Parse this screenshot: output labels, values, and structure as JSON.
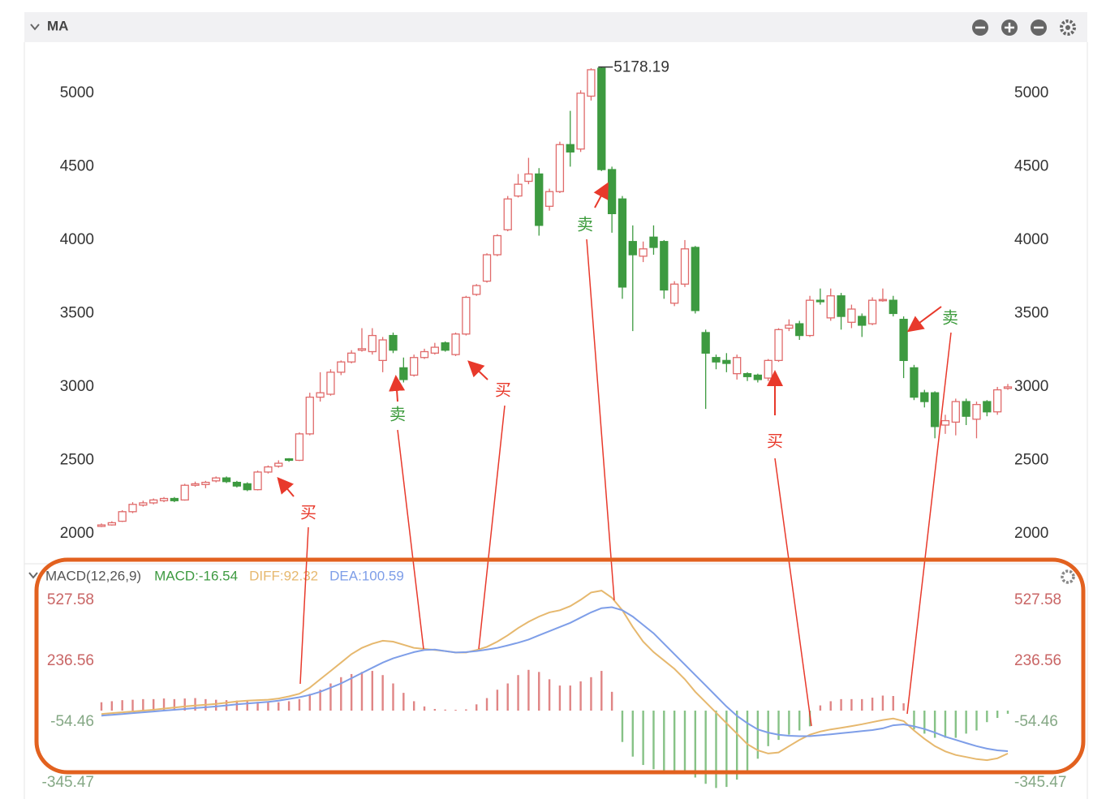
{
  "chart_data": [
    {
      "type": "candlestick",
      "title": "MA",
      "up_color": "#e06a6a",
      "down_color": "#3d9a40",
      "ylim": [
        1823,
        5331
      ],
      "yticks": [
        2000,
        2500,
        3000,
        3500,
        4000,
        4500,
        5000
      ],
      "max_index": 48,
      "open": [
        2050,
        2060,
        2085,
        2150,
        2195,
        2210,
        2225,
        2240,
        2230,
        2330,
        2335,
        2360,
        2380,
        2350,
        2340,
        2300,
        2420,
        2460,
        2510,
        2500,
        2680,
        2930,
        2950,
        3100,
        3170,
        3250,
        3240,
        3180,
        3350,
        3130,
        3080,
        3200,
        3230,
        3300,
        3220,
        3360,
        3630,
        3720,
        3900,
        4070,
        4300,
        4400,
        4450,
        4230,
        4330,
        4650,
        4620,
        4980,
        5170,
        4480,
        4280,
        3990,
        3890,
        4020,
        3990,
        3570,
        3700,
        3950,
        3370,
        3200,
        3180,
        3090,
        3090,
        3080,
        3060,
        3180,
        3400,
        3430,
        3350,
        3590,
        3470,
        3620,
        3440,
        3480,
        3430,
        3590,
        3590,
        3460,
        3130,
        2960,
        2960,
        2740,
        2760,
        2900,
        2780,
        2900,
        2830,
        2990
      ],
      "high": [
        2070,
        2085,
        2160,
        2215,
        2225,
        2240,
        2250,
        2250,
        2340,
        2355,
        2360,
        2390,
        2390,
        2360,
        2350,
        2430,
        2465,
        2500,
        2515,
        2690,
        2960,
        3100,
        3120,
        3180,
        3250,
        3400,
        3400,
        3340,
        3370,
        3200,
        3220,
        3260,
        3300,
        3310,
        3370,
        3620,
        3700,
        3910,
        4040,
        4300,
        4450,
        4560,
        4490,
        4350,
        4670,
        4880,
        5020,
        5170,
        5178.19,
        4500,
        4300,
        4100,
        3990,
        4100,
        4000,
        3720,
        4000,
        3960,
        3390,
        3220,
        3230,
        3220,
        3100,
        3090,
        3190,
        3400,
        3460,
        3450,
        3620,
        3670,
        3670,
        3640,
        3560,
        3500,
        3610,
        3670,
        3620,
        3480,
        3150,
        2980,
        2970,
        2810,
        2920,
        2920,
        2900,
        2910,
        3000,
        3020
      ],
      "low": [
        2045,
        2055,
        2080,
        2140,
        2185,
        2200,
        2215,
        2215,
        2225,
        2320,
        2310,
        2350,
        2345,
        2315,
        2290,
        2295,
        2410,
        2450,
        2490,
        2495,
        2670,
        2900,
        2940,
        3080,
        3160,
        3240,
        3220,
        3100,
        3230,
        3030,
        3070,
        3190,
        3220,
        3240,
        3210,
        3350,
        3620,
        3710,
        3890,
        4060,
        4290,
        4380,
        4030,
        4200,
        4320,
        4500,
        4600,
        4950,
        4470,
        4050,
        3600,
        3380,
        3850,
        3900,
        3600,
        3550,
        3680,
        3500,
        2850,
        3120,
        3100,
        3050,
        3040,
        3030,
        3040,
        3170,
        3380,
        3320,
        3340,
        3560,
        3450,
        3390,
        3400,
        3340,
        3420,
        3580,
        3480,
        3060,
        2910,
        2860,
        2650,
        2680,
        2670,
        2740,
        2650,
        2800,
        2810,
        2980
      ],
      "close": [
        2060,
        2075,
        2150,
        2200,
        2210,
        2230,
        2240,
        2225,
        2330,
        2340,
        2350,
        2380,
        2355,
        2325,
        2300,
        2420,
        2455,
        2480,
        2500,
        2680,
        2930,
        2960,
        3100,
        3170,
        3230,
        3260,
        3350,
        3320,
        3250,
        3050,
        3200,
        3240,
        3270,
        3250,
        3360,
        3610,
        3690,
        3900,
        4030,
        4280,
        4380,
        4450,
        4100,
        4330,
        4650,
        4600,
        5000,
        5160,
        4480,
        4180,
        3680,
        3900,
        3940,
        3950,
        3660,
        3700,
        3940,
        3520,
        3230,
        3170,
        3160,
        3200,
        3070,
        3050,
        3180,
        3390,
        3420,
        3350,
        3590,
        3580,
        3620,
        3480,
        3530,
        3420,
        3590,
        3595,
        3500,
        3180,
        2930,
        2900,
        2730,
        2770,
        2900,
        2800,
        2880,
        2830,
        2980,
        3000
      ]
    },
    {
      "type": "macd",
      "title": "MACD(12,26,9)",
      "ylim": [
        -384,
        586
      ],
      "yticks": [
        -345.47,
        -54.46,
        236.56,
        527.58
      ],
      "series": [
        {
          "name": "MACD:-16.54",
          "color": "#3d9a40",
          "up_color": "#e08585",
          "down_color": "#86c286",
          "values": [
            40,
            45,
            50,
            52,
            55,
            55,
            58,
            55,
            58,
            60,
            55,
            52,
            50,
            48,
            45,
            42,
            40,
            40,
            45,
            55,
            80,
            100,
            130,
            160,
            175,
            185,
            190,
            170,
            130,
            85,
            45,
            20,
            8,
            5,
            4,
            6,
            30,
            60,
            100,
            130,
            170,
            195,
            185,
            150,
            120,
            120,
            140,
            160,
            190,
            90,
            -150,
            -220,
            -260,
            -280,
            -300,
            -290,
            -290,
            -320,
            -350,
            -370,
            -365,
            -330,
            -290,
            -230,
            -170,
            -140,
            -115,
            -95,
            -75,
            25,
            45,
            55,
            55,
            55,
            62,
            72,
            70,
            35,
            -90,
            -110,
            -130,
            -130,
            -130,
            -110,
            -95,
            -55,
            -35,
            -15
          ]
        },
        {
          "name": "DIFF:92.32",
          "color": "#e6b86e",
          "values": [
            -16,
            -12,
            -8,
            -4,
            0,
            4,
            10,
            15,
            20,
            24,
            28,
            32,
            38,
            44,
            48,
            50,
            52,
            58,
            68,
            81,
            110,
            150,
            190,
            230,
            270,
            300,
            320,
            334,
            330,
            315,
            300,
            295,
            290,
            285,
            278,
            278,
            290,
            305,
            330,
            360,
            395,
            425,
            450,
            470,
            480,
            500,
            530,
            565,
            574,
            540,
            480,
            400,
            330,
            280,
            240,
            200,
            150,
            90,
            40,
            -10,
            -60,
            -110,
            -160,
            -190,
            -205,
            -200,
            -170,
            -140,
            -115,
            -100,
            -90,
            -82,
            -74,
            -65,
            -55,
            -45,
            -38,
            -50,
            -95,
            -135,
            -170,
            -195,
            -212,
            -222,
            -232,
            -237,
            -228,
            -205
          ]
        },
        {
          "name": "DEA:100.59",
          "color": "#7e9ee8",
          "values": [
            -24,
            -20,
            -16,
            -12,
            -8,
            -4,
            0,
            4,
            8,
            12,
            16,
            20,
            25,
            30,
            34,
            38,
            42,
            48,
            56,
            64,
            75,
            90,
            110,
            130,
            155,
            180,
            205,
            230,
            250,
            265,
            280,
            290,
            292,
            285,
            278,
            280,
            285,
            292,
            300,
            312,
            325,
            340,
            360,
            380,
            400,
            420,
            445,
            470,
            490,
            495,
            480,
            450,
            410,
            370,
            320,
            270,
            220,
            170,
            120,
            70,
            20,
            -25,
            -60,
            -90,
            -105,
            -115,
            -120,
            -122,
            -122,
            -118,
            -113,
            -108,
            -103,
            -98,
            -93,
            -85,
            -70,
            -66,
            -75,
            -88,
            -105,
            -125,
            -140,
            -155,
            -170,
            -182,
            -190,
            -194
          ]
        }
      ]
    }
  ],
  "annotations": [
    {
      "text": "买",
      "color": "#e8392b"
    },
    {
      "text": "卖",
      "color": "#3a9a3a"
    },
    {
      "text": "买",
      "color": "#e8392b"
    },
    {
      "text": "卖",
      "color": "#3a9a3a"
    },
    {
      "text": "买",
      "color": "#e8392b"
    },
    {
      "text": "卖",
      "color": "#3a9a3a"
    }
  ],
  "annotation_line_color": "#e8392b"
}
